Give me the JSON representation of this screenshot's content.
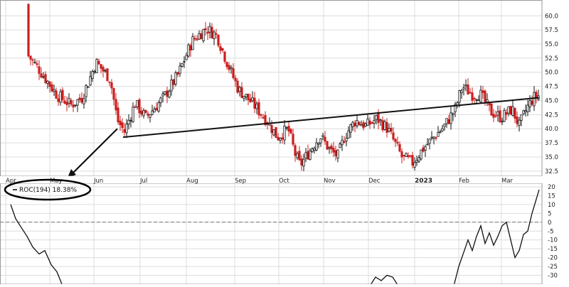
{
  "chart_data": [
    {
      "type": "candlestick",
      "x_labels": [
        "Apr",
        "May",
        "Jun",
        "Jul",
        "Aug",
        "Sep",
        "Oct",
        "Nov",
        "Dec",
        "2023",
        "Feb",
        "Mar"
      ],
      "x_label_bold": "2023",
      "y_ticks": [
        32.5,
        35.0,
        37.5,
        40.0,
        42.5,
        45.0,
        47.5,
        50.0,
        52.5,
        55.0,
        57.5,
        60.0
      ],
      "ylim": [
        31.6,
        62.8
      ],
      "grid": true,
      "closes": [
        [
          0,
          62.0
        ],
        [
          12,
          58.5
        ],
        [
          30,
          54.5
        ],
        [
          55,
          50.5
        ],
        [
          80,
          46.0
        ],
        [
          100,
          44.2
        ],
        [
          115,
          45.5
        ],
        [
          125,
          48.5
        ],
        [
          135,
          51.8
        ],
        [
          155,
          48.8
        ],
        [
          165,
          41.5
        ],
        [
          175,
          39.5
        ],
        [
          190,
          44.5
        ],
        [
          205,
          42.0
        ],
        [
          230,
          45.5
        ],
        [
          250,
          49.5
        ],
        [
          270,
          55.5
        ],
        [
          290,
          57.8
        ],
        [
          305,
          56.5
        ],
        [
          320,
          51.5
        ],
        [
          335,
          47.0
        ],
        [
          355,
          44.5
        ],
        [
          375,
          41.5
        ],
        [
          390,
          38.5
        ],
        [
          405,
          40.0
        ],
        [
          415,
          35.5
        ],
        [
          422,
          33.5
        ],
        [
          435,
          36.0
        ],
        [
          450,
          38.8
        ],
        [
          465,
          36.0
        ],
        [
          475,
          35.2
        ],
        [
          485,
          38.8
        ],
        [
          500,
          41.5
        ],
        [
          515,
          40.5
        ],
        [
          530,
          41.8
        ],
        [
          545,
          40.0
        ],
        [
          555,
          37.5
        ],
        [
          565,
          35.0
        ],
        [
          580,
          34.0
        ],
        [
          595,
          36.5
        ],
        [
          610,
          38.5
        ],
        [
          625,
          40.5
        ],
        [
          640,
          43.5
        ],
        [
          650,
          47.5
        ],
        [
          665,
          46.0
        ],
        [
          675,
          46.2
        ],
        [
          690,
          43.0
        ],
        [
          705,
          42.0
        ],
        [
          720,
          43.5
        ],
        [
          730,
          40.5
        ],
        [
          740,
          43.5
        ],
        [
          750,
          45.5
        ],
        [
          760,
          46.0
        ]
      ],
      "trendline": [
        [
          173,
          38.5
        ],
        [
          758,
          45.5
        ]
      ],
      "arrow": {
        "from": [
          165,
          40.0
        ],
        "to": [
          95,
          250
        ]
      }
    },
    {
      "type": "line",
      "series": [
        {
          "name": "ROC(194)"
        }
      ],
      "legend_label": "ROC(194) 18.38%",
      "y_ticks": [
        20,
        15,
        10,
        5,
        0,
        -5,
        -10,
        -15,
        -20,
        -25,
        -30
      ],
      "ylim": [
        -35,
        22
      ],
      "zero_line": true,
      "values": [
        [
          15,
          10
        ],
        [
          22,
          2
        ],
        [
          30,
          -3
        ],
        [
          38,
          -8
        ],
        [
          46,
          -14
        ],
        [
          55,
          -18
        ],
        [
          63,
          -16
        ],
        [
          72,
          -24
        ],
        [
          80,
          -28
        ],
        [
          88,
          -36
        ],
        [
          520,
          -36
        ],
        [
          528,
          -31
        ],
        [
          536,
          -33
        ],
        [
          544,
          -30
        ],
        [
          552,
          -31
        ],
        [
          560,
          -36
        ],
        [
          638,
          -36
        ],
        [
          645,
          -25
        ],
        [
          652,
          -17
        ],
        [
          658,
          -10
        ],
        [
          664,
          -16
        ],
        [
          670,
          -8
        ],
        [
          676,
          -2
        ],
        [
          682,
          -12
        ],
        [
          688,
          -6
        ],
        [
          694,
          -13
        ],
        [
          700,
          -8
        ],
        [
          706,
          -2
        ],
        [
          712,
          0
        ],
        [
          718,
          -10
        ],
        [
          724,
          -20
        ],
        [
          730,
          -16
        ],
        [
          736,
          -7
        ],
        [
          742,
          -5
        ],
        [
          748,
          5
        ],
        [
          754,
          13
        ],
        [
          758,
          18.38
        ]
      ]
    }
  ],
  "colors": {
    "up": "#111111",
    "down": "#cc1f1f",
    "roc_line": "#111111",
    "trendline": "#111111",
    "grid": "#dcdcdc",
    "legend_ellipse": "#000000"
  }
}
